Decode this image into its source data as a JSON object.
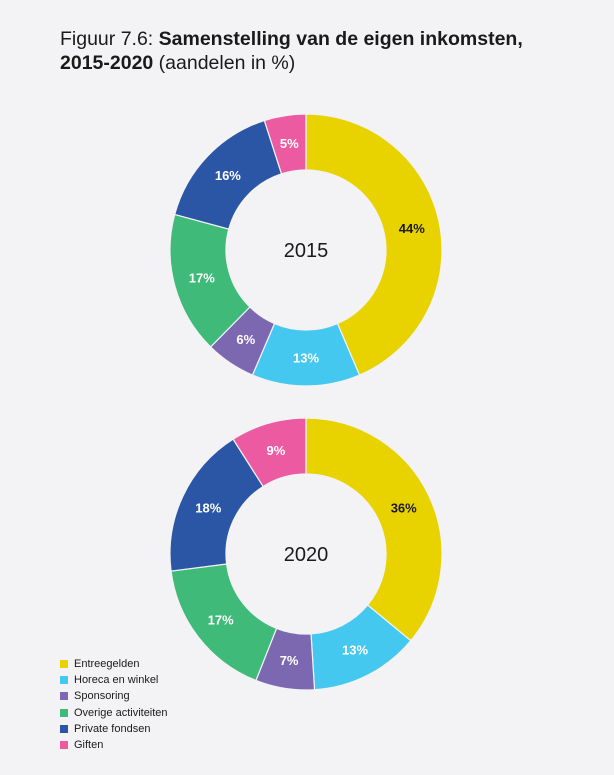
{
  "title": {
    "prefix": "Figuur 7.6: ",
    "bold_line1": "Samenstelling van de eigen inkomsten,",
    "bold_line2": "2015-2020",
    "suffix": " (aandelen in %)"
  },
  "chart_data": [
    {
      "type": "pie",
      "donut": true,
      "center_label": "2015",
      "categories": [
        "Entreegelden",
        "Horeca en winkel",
        "Sponsoring",
        "Overige activiteiten",
        "Private fondsen",
        "Giften"
      ],
      "values": [
        44,
        13,
        6,
        17,
        16,
        5
      ],
      "labels": [
        "44%",
        "13%",
        "6%",
        "17%",
        "16%",
        "5%"
      ]
    },
    {
      "type": "pie",
      "donut": true,
      "center_label": "2020",
      "categories": [
        "Entreegelden",
        "Horeca en winkel",
        "Sponsoring",
        "Overige activiteiten",
        "Private fondsen",
        "Giften"
      ],
      "values": [
        36,
        13,
        7,
        17,
        18,
        9
      ],
      "labels": [
        "36%",
        "13%",
        "7%",
        "17%",
        "18%",
        "9%"
      ]
    }
  ],
  "legend": [
    {
      "label": "Entreegelden",
      "color": "#e8d200"
    },
    {
      "label": "Horeca en winkel",
      "color": "#45c8f0"
    },
    {
      "label": "Sponsoring",
      "color": "#7b68b0"
    },
    {
      "label": "Overige activiteiten",
      "color": "#3fba78"
    },
    {
      "label": "Private fondsen",
      "color": "#2a56a5"
    },
    {
      "label": "Giften",
      "color": "#ec5ba1"
    }
  ],
  "colors": [
    "#e8d200",
    "#45c8f0",
    "#7b68b0",
    "#3fba78",
    "#2a56a5",
    "#ec5ba1"
  ]
}
